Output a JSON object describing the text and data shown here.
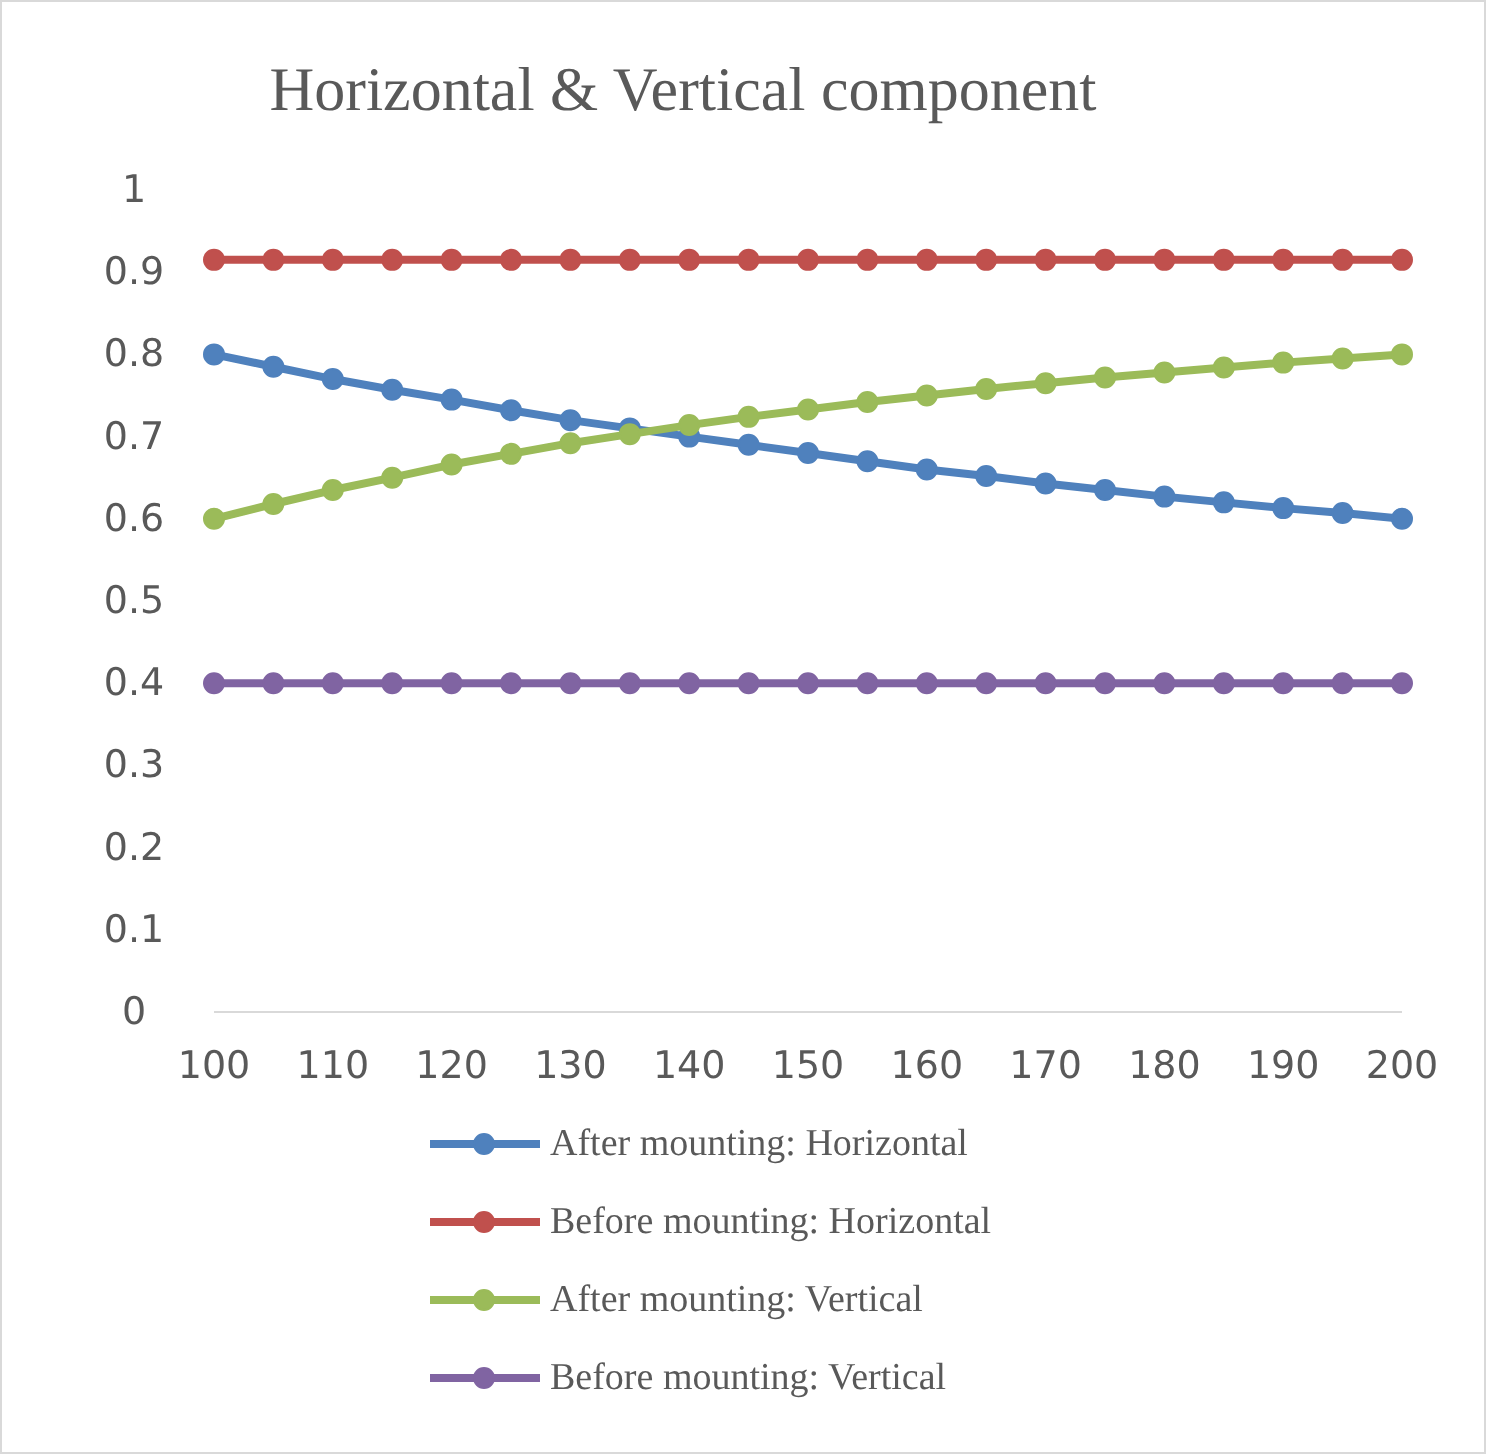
{
  "chart_data": {
    "type": "line",
    "title": "Horizontal & Vertical component",
    "x": [
      100,
      105,
      110,
      115,
      120,
      125,
      130,
      135,
      140,
      145,
      150,
      155,
      160,
      165,
      170,
      175,
      180,
      185,
      190,
      195,
      200
    ],
    "xlim": [
      100,
      200
    ],
    "xticks": [
      100,
      110,
      120,
      130,
      140,
      150,
      160,
      170,
      180,
      190,
      200
    ],
    "ylim": [
      0,
      1
    ],
    "yticks": [
      0,
      0.1,
      0.2,
      0.3,
      0.4,
      0.5,
      0.6,
      0.7,
      0.8,
      0.9,
      1
    ],
    "grid": false,
    "legend": "bottom",
    "marker": "circle",
    "line_style": "solid",
    "series": [
      {
        "name": "After mounting: Horizontal",
        "color": "#4f81bd",
        "values": [
          0.8,
          0.785,
          0.77,
          0.757,
          0.745,
          0.732,
          0.72,
          0.71,
          0.7,
          0.69,
          0.68,
          0.67,
          0.66,
          0.652,
          0.643,
          0.635,
          0.627,
          0.62,
          0.613,
          0.607,
          0.6
        ]
      },
      {
        "name": "Before mounting: Horizontal",
        "color": "#c0504d",
        "values": [
          0.915,
          0.915,
          0.915,
          0.915,
          0.915,
          0.915,
          0.915,
          0.915,
          0.915,
          0.915,
          0.915,
          0.915,
          0.915,
          0.915,
          0.915,
          0.915,
          0.915,
          0.915,
          0.915,
          0.915,
          0.915
        ]
      },
      {
        "name": "After mounting: Vertical",
        "color": "#9bbb59",
        "values": [
          0.6,
          0.618,
          0.635,
          0.65,
          0.666,
          0.679,
          0.692,
          0.703,
          0.714,
          0.724,
          0.733,
          0.742,
          0.75,
          0.758,
          0.765,
          0.772,
          0.778,
          0.784,
          0.79,
          0.795,
          0.8
        ]
      },
      {
        "name": "Before mounting: Vertical",
        "color": "#8064a2",
        "values": [
          0.4,
          0.4,
          0.4,
          0.4,
          0.4,
          0.4,
          0.4,
          0.4,
          0.4,
          0.4,
          0.4,
          0.4,
          0.4,
          0.4,
          0.4,
          0.4,
          0.4,
          0.4,
          0.4,
          0.4,
          0.4
        ]
      }
    ]
  }
}
